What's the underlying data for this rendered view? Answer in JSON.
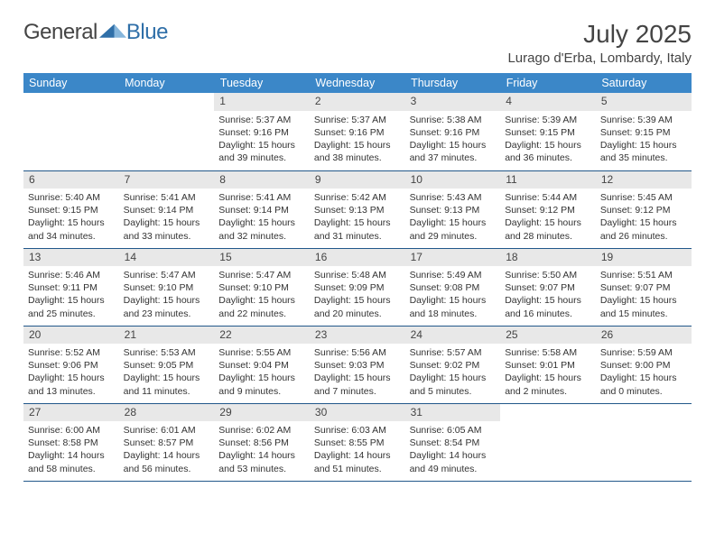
{
  "brand": {
    "part1": "General",
    "part2": "Blue"
  },
  "title": "July 2025",
  "location": "Lurago d'Erba, Lombardy, Italy",
  "header_bg": "#3b87c8",
  "divider_color": "#22588a",
  "daynum_bg": "#e8e8e8",
  "weekdays": [
    "Sunday",
    "Monday",
    "Tuesday",
    "Wednesday",
    "Thursday",
    "Friday",
    "Saturday"
  ],
  "days": {
    "1": {
      "sunrise": "5:37 AM",
      "sunset": "9:16 PM",
      "daylight": "15 hours and 39 minutes."
    },
    "2": {
      "sunrise": "5:37 AM",
      "sunset": "9:16 PM",
      "daylight": "15 hours and 38 minutes."
    },
    "3": {
      "sunrise": "5:38 AM",
      "sunset": "9:16 PM",
      "daylight": "15 hours and 37 minutes."
    },
    "4": {
      "sunrise": "5:39 AM",
      "sunset": "9:15 PM",
      "daylight": "15 hours and 36 minutes."
    },
    "5": {
      "sunrise": "5:39 AM",
      "sunset": "9:15 PM",
      "daylight": "15 hours and 35 minutes."
    },
    "6": {
      "sunrise": "5:40 AM",
      "sunset": "9:15 PM",
      "daylight": "15 hours and 34 minutes."
    },
    "7": {
      "sunrise": "5:41 AM",
      "sunset": "9:14 PM",
      "daylight": "15 hours and 33 minutes."
    },
    "8": {
      "sunrise": "5:41 AM",
      "sunset": "9:14 PM",
      "daylight": "15 hours and 32 minutes."
    },
    "9": {
      "sunrise": "5:42 AM",
      "sunset": "9:13 PM",
      "daylight": "15 hours and 31 minutes."
    },
    "10": {
      "sunrise": "5:43 AM",
      "sunset": "9:13 PM",
      "daylight": "15 hours and 29 minutes."
    },
    "11": {
      "sunrise": "5:44 AM",
      "sunset": "9:12 PM",
      "daylight": "15 hours and 28 minutes."
    },
    "12": {
      "sunrise": "5:45 AM",
      "sunset": "9:12 PM",
      "daylight": "15 hours and 26 minutes."
    },
    "13": {
      "sunrise": "5:46 AM",
      "sunset": "9:11 PM",
      "daylight": "15 hours and 25 minutes."
    },
    "14": {
      "sunrise": "5:47 AM",
      "sunset": "9:10 PM",
      "daylight": "15 hours and 23 minutes."
    },
    "15": {
      "sunrise": "5:47 AM",
      "sunset": "9:10 PM",
      "daylight": "15 hours and 22 minutes."
    },
    "16": {
      "sunrise": "5:48 AM",
      "sunset": "9:09 PM",
      "daylight": "15 hours and 20 minutes."
    },
    "17": {
      "sunrise": "5:49 AM",
      "sunset": "9:08 PM",
      "daylight": "15 hours and 18 minutes."
    },
    "18": {
      "sunrise": "5:50 AM",
      "sunset": "9:07 PM",
      "daylight": "15 hours and 16 minutes."
    },
    "19": {
      "sunrise": "5:51 AM",
      "sunset": "9:07 PM",
      "daylight": "15 hours and 15 minutes."
    },
    "20": {
      "sunrise": "5:52 AM",
      "sunset": "9:06 PM",
      "daylight": "15 hours and 13 minutes."
    },
    "21": {
      "sunrise": "5:53 AM",
      "sunset": "9:05 PM",
      "daylight": "15 hours and 11 minutes."
    },
    "22": {
      "sunrise": "5:55 AM",
      "sunset": "9:04 PM",
      "daylight": "15 hours and 9 minutes."
    },
    "23": {
      "sunrise": "5:56 AM",
      "sunset": "9:03 PM",
      "daylight": "15 hours and 7 minutes."
    },
    "24": {
      "sunrise": "5:57 AM",
      "sunset": "9:02 PM",
      "daylight": "15 hours and 5 minutes."
    },
    "25": {
      "sunrise": "5:58 AM",
      "sunset": "9:01 PM",
      "daylight": "15 hours and 2 minutes."
    },
    "26": {
      "sunrise": "5:59 AM",
      "sunset": "9:00 PM",
      "daylight": "15 hours and 0 minutes."
    },
    "27": {
      "sunrise": "6:00 AM",
      "sunset": "8:58 PM",
      "daylight": "14 hours and 58 minutes."
    },
    "28": {
      "sunrise": "6:01 AM",
      "sunset": "8:57 PM",
      "daylight": "14 hours and 56 minutes."
    },
    "29": {
      "sunrise": "6:02 AM",
      "sunset": "8:56 PM",
      "daylight": "14 hours and 53 minutes."
    },
    "30": {
      "sunrise": "6:03 AM",
      "sunset": "8:55 PM",
      "daylight": "14 hours and 51 minutes."
    },
    "31": {
      "sunrise": "6:05 AM",
      "sunset": "8:54 PM",
      "daylight": "14 hours and 49 minutes."
    }
  },
  "layout": [
    [
      null,
      null,
      "1",
      "2",
      "3",
      "4",
      "5"
    ],
    [
      "6",
      "7",
      "8",
      "9",
      "10",
      "11",
      "12"
    ],
    [
      "13",
      "14",
      "15",
      "16",
      "17",
      "18",
      "19"
    ],
    [
      "20",
      "21",
      "22",
      "23",
      "24",
      "25",
      "26"
    ],
    [
      "27",
      "28",
      "29",
      "30",
      "31",
      null,
      null
    ]
  ],
  "labels": {
    "sunrise": "Sunrise:",
    "sunset": "Sunset:",
    "daylight": "Daylight:"
  }
}
